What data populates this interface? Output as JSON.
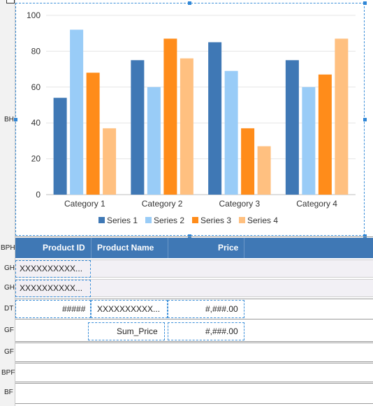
{
  "gutter_labels": {
    "bh": "BH",
    "bph": "BPH",
    "gh1": "GH",
    "gh2": "GH",
    "dt": "DT",
    "gf1": "GF",
    "gf2": "GF",
    "bpf": "BPF",
    "bf": "BF"
  },
  "table": {
    "headers": {
      "product_id": "Product ID",
      "product_name": "Product Name",
      "price": "Price"
    },
    "gh1_value": "XXXXXXXXXX...",
    "gh2_value": "XXXXXXXXXX...",
    "detail": {
      "product_id": "#####",
      "product_name": "XXXXXXXXXX...",
      "price": "#,###.00"
    },
    "group_footer": {
      "sum_label": "Sum_Price",
      "sum_value": "#,###.00"
    }
  },
  "chart_data": {
    "type": "bar",
    "categories": [
      "Category 1",
      "Category 2",
      "Category 3",
      "Category 4"
    ],
    "series": [
      {
        "name": "Series 1",
        "color": "#3f78b5",
        "values": [
          54,
          75,
          85,
          75
        ]
      },
      {
        "name": "Series 2",
        "color": "#99ccf7",
        "values": [
          92,
          60,
          69,
          60
        ]
      },
      {
        "name": "Series 3",
        "color": "#ff8c1a",
        "values": [
          68,
          87,
          37,
          67
        ]
      },
      {
        "name": "Series 4",
        "color": "#ffc080",
        "values": [
          37,
          76,
          27,
          87
        ]
      }
    ],
    "yticks": [
      "0",
      "20",
      "40",
      "60",
      "80",
      "100"
    ],
    "ylim": [
      0,
      100
    ],
    "grid": true,
    "legend_position": "bottom"
  }
}
